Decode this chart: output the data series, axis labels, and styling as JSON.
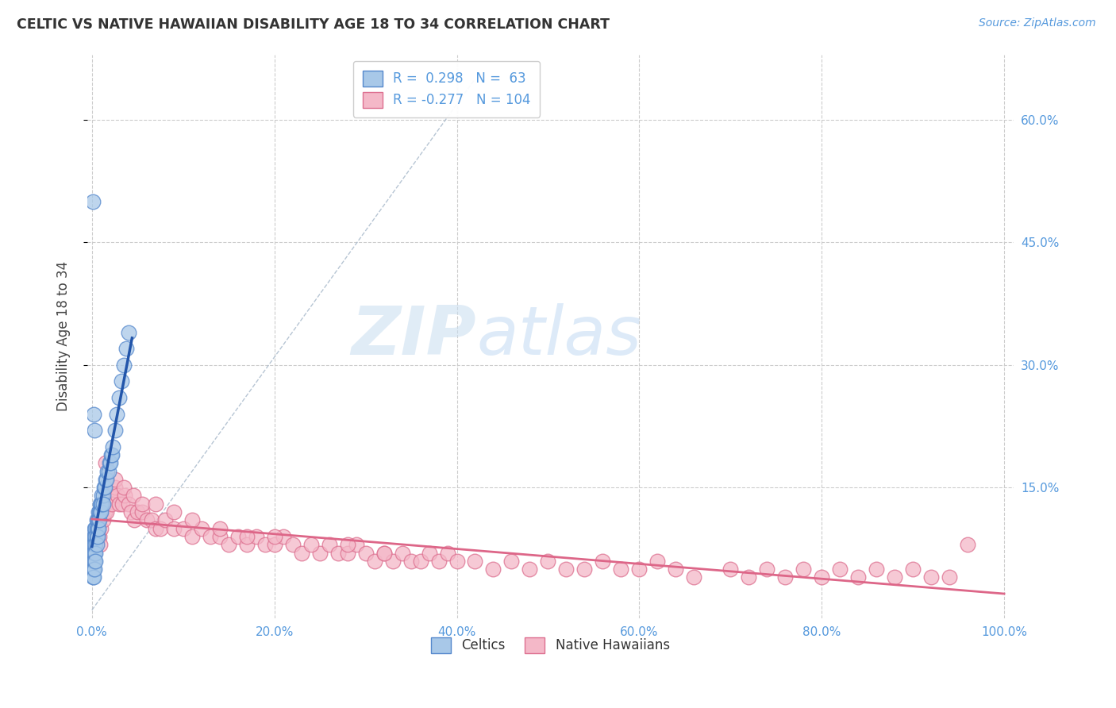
{
  "title": "CELTIC VS NATIVE HAWAIIAN DISABILITY AGE 18 TO 34 CORRELATION CHART",
  "source_text": "Source: ZipAtlas.com",
  "ylabel": "Disability Age 18 to 34",
  "xlim": [
    -0.005,
    1.01
  ],
  "ylim": [
    -0.01,
    0.68
  ],
  "xticks": [
    0.0,
    0.2,
    0.4,
    0.6,
    0.8,
    1.0
  ],
  "xticklabels": [
    "0.0%",
    "20.0%",
    "40.0%",
    "60.0%",
    "80.0%",
    "100.0%"
  ],
  "yticks": [
    0.15,
    0.3,
    0.45,
    0.6
  ],
  "yticklabels": [
    "15.0%",
    "30.0%",
    "45.0%",
    "60.0%"
  ],
  "celtics_color": "#a8c8e8",
  "celtics_edge": "#5588cc",
  "hawaiians_color": "#f4b8c8",
  "hawaiians_edge": "#dd7090",
  "blue_line_color": "#2255aa",
  "pink_line_color": "#dd6688",
  "ref_line_color": "#aabbcc",
  "grid_color": "#cccccc",
  "background_color": "#ffffff",
  "watermark_zip": "ZIP",
  "watermark_atlas": "atlas",
  "tick_color": "#5599dd",
  "title_color": "#333333",
  "celtics_x": [
    0.001,
    0.001,
    0.001,
    0.001,
    0.001,
    0.002,
    0.002,
    0.002,
    0.002,
    0.002,
    0.002,
    0.003,
    0.003,
    0.003,
    0.003,
    0.003,
    0.003,
    0.004,
    0.004,
    0.004,
    0.004,
    0.004,
    0.005,
    0.005,
    0.005,
    0.005,
    0.006,
    0.006,
    0.006,
    0.007,
    0.007,
    0.007,
    0.008,
    0.008,
    0.009,
    0.009,
    0.01,
    0.01,
    0.011,
    0.011,
    0.012,
    0.012,
    0.013,
    0.014,
    0.015,
    0.016,
    0.017,
    0.018,
    0.019,
    0.02,
    0.021,
    0.022,
    0.023,
    0.025,
    0.027,
    0.03,
    0.032,
    0.035,
    0.038,
    0.04,
    0.001,
    0.002,
    0.003
  ],
  "celtics_y": [
    0.08,
    0.07,
    0.06,
    0.05,
    0.04,
    0.09,
    0.08,
    0.07,
    0.06,
    0.05,
    0.04,
    0.1,
    0.09,
    0.08,
    0.07,
    0.06,
    0.05,
    0.1,
    0.09,
    0.08,
    0.07,
    0.06,
    0.11,
    0.1,
    0.09,
    0.08,
    0.11,
    0.1,
    0.09,
    0.12,
    0.11,
    0.1,
    0.12,
    0.11,
    0.13,
    0.12,
    0.13,
    0.12,
    0.14,
    0.13,
    0.14,
    0.13,
    0.15,
    0.15,
    0.16,
    0.16,
    0.17,
    0.17,
    0.18,
    0.18,
    0.19,
    0.19,
    0.2,
    0.22,
    0.24,
    0.26,
    0.28,
    0.3,
    0.32,
    0.34,
    0.5,
    0.24,
    0.22
  ],
  "hawaiians_x": [
    0.001,
    0.002,
    0.003,
    0.004,
    0.005,
    0.006,
    0.007,
    0.008,
    0.009,
    0.01,
    0.012,
    0.014,
    0.015,
    0.016,
    0.018,
    0.02,
    0.022,
    0.025,
    0.028,
    0.03,
    0.033,
    0.036,
    0.04,
    0.043,
    0.046,
    0.05,
    0.055,
    0.06,
    0.065,
    0.07,
    0.075,
    0.08,
    0.09,
    0.1,
    0.11,
    0.12,
    0.13,
    0.14,
    0.15,
    0.16,
    0.17,
    0.18,
    0.19,
    0.2,
    0.21,
    0.22,
    0.23,
    0.25,
    0.26,
    0.27,
    0.28,
    0.29,
    0.3,
    0.31,
    0.32,
    0.33,
    0.34,
    0.35,
    0.36,
    0.37,
    0.38,
    0.39,
    0.4,
    0.42,
    0.44,
    0.46,
    0.48,
    0.5,
    0.52,
    0.54,
    0.56,
    0.58,
    0.6,
    0.62,
    0.64,
    0.66,
    0.7,
    0.72,
    0.74,
    0.76,
    0.78,
    0.8,
    0.82,
    0.84,
    0.86,
    0.88,
    0.9,
    0.92,
    0.94,
    0.96,
    0.015,
    0.025,
    0.035,
    0.045,
    0.055,
    0.07,
    0.09,
    0.11,
    0.14,
    0.17,
    0.2,
    0.24,
    0.28,
    0.32
  ],
  "hawaiians_y": [
    0.06,
    0.07,
    0.08,
    0.09,
    0.1,
    0.09,
    0.1,
    0.09,
    0.08,
    0.1,
    0.11,
    0.12,
    0.13,
    0.12,
    0.14,
    0.14,
    0.13,
    0.15,
    0.14,
    0.13,
    0.13,
    0.14,
    0.13,
    0.12,
    0.11,
    0.12,
    0.12,
    0.11,
    0.11,
    0.1,
    0.1,
    0.11,
    0.1,
    0.1,
    0.09,
    0.1,
    0.09,
    0.09,
    0.08,
    0.09,
    0.08,
    0.09,
    0.08,
    0.08,
    0.09,
    0.08,
    0.07,
    0.07,
    0.08,
    0.07,
    0.07,
    0.08,
    0.07,
    0.06,
    0.07,
    0.06,
    0.07,
    0.06,
    0.06,
    0.07,
    0.06,
    0.07,
    0.06,
    0.06,
    0.05,
    0.06,
    0.05,
    0.06,
    0.05,
    0.05,
    0.06,
    0.05,
    0.05,
    0.06,
    0.05,
    0.04,
    0.05,
    0.04,
    0.05,
    0.04,
    0.05,
    0.04,
    0.05,
    0.04,
    0.05,
    0.04,
    0.05,
    0.04,
    0.04,
    0.08,
    0.18,
    0.16,
    0.15,
    0.14,
    0.13,
    0.13,
    0.12,
    0.11,
    0.1,
    0.09,
    0.09,
    0.08,
    0.08,
    0.07
  ]
}
